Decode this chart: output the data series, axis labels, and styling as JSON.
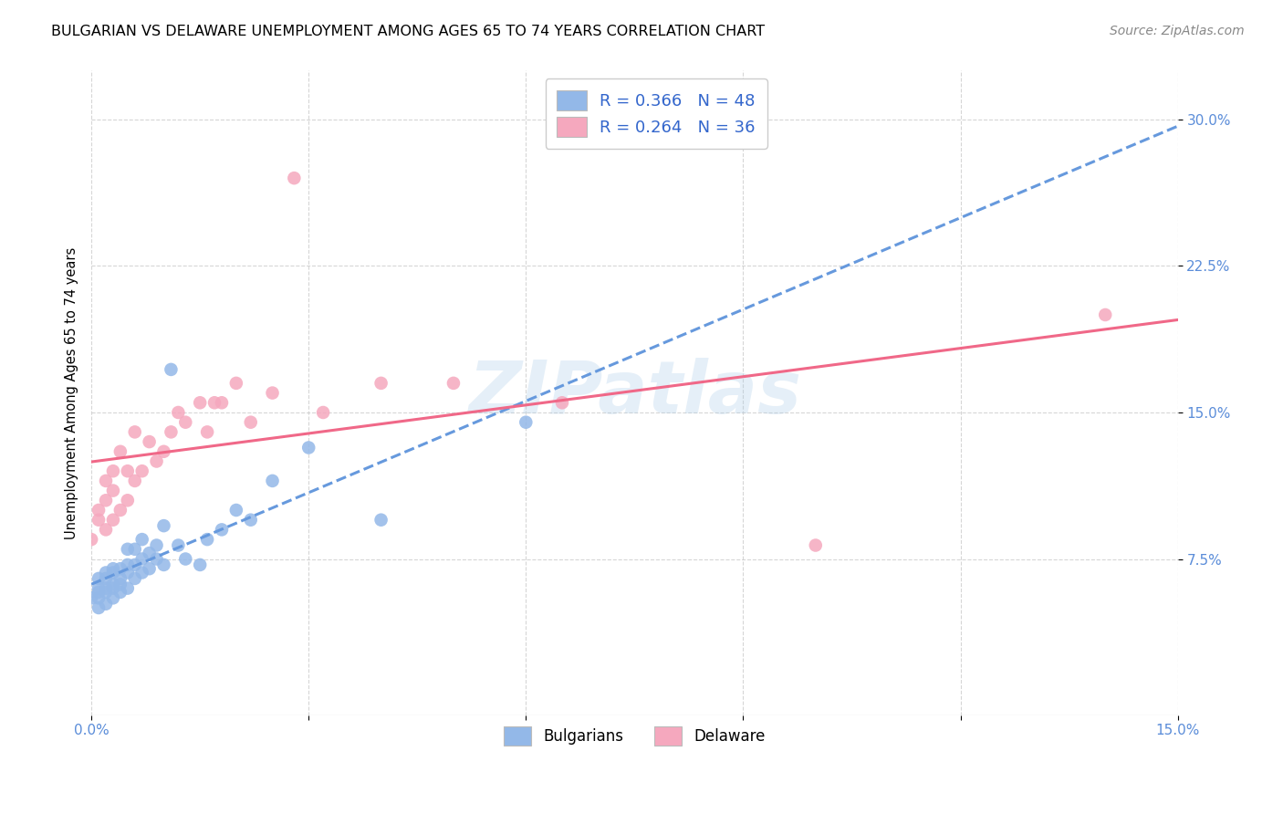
{
  "title": "BULGARIAN VS DELAWARE UNEMPLOYMENT AMONG AGES 65 TO 74 YEARS CORRELATION CHART",
  "source": "Source: ZipAtlas.com",
  "ylabel": "Unemployment Among Ages 65 to 74 years",
  "xlim": [
    0.0,
    0.15
  ],
  "ylim": [
    -0.005,
    0.325
  ],
  "xtick_positions": [
    0.0,
    0.03,
    0.06,
    0.09,
    0.12,
    0.15
  ],
  "xticklabels": [
    "0.0%",
    "",
    "",
    "",
    "",
    "15.0%"
  ],
  "ytick_positions": [
    0.075,
    0.15,
    0.225,
    0.3
  ],
  "ytick_labels": [
    "7.5%",
    "15.0%",
    "22.5%",
    "30.0%"
  ],
  "watermark": "ZIPatlas",
  "legend_label1": "Bulgarians",
  "legend_label2": "Delaware",
  "scatter_color1": "#93b8e8",
  "scatter_color2": "#f5a8be",
  "line_color1": "#6699dd",
  "line_color2": "#f06888",
  "background_color": "#ffffff",
  "grid_color": "#cccccc",
  "bulgarians_x": [
    0.0,
    0.001,
    0.001,
    0.001,
    0.001,
    0.001,
    0.002,
    0.002,
    0.002,
    0.002,
    0.002,
    0.003,
    0.003,
    0.003,
    0.003,
    0.003,
    0.004,
    0.004,
    0.004,
    0.004,
    0.005,
    0.005,
    0.005,
    0.005,
    0.006,
    0.006,
    0.006,
    0.007,
    0.007,
    0.007,
    0.008,
    0.008,
    0.009,
    0.009,
    0.01,
    0.01,
    0.011,
    0.012,
    0.013,
    0.015,
    0.016,
    0.018,
    0.02,
    0.022,
    0.025,
    0.03,
    0.04,
    0.06
  ],
  "bulgarians_y": [
    0.055,
    0.05,
    0.055,
    0.06,
    0.065,
    0.058,
    0.052,
    0.06,
    0.065,
    0.068,
    0.058,
    0.055,
    0.062,
    0.068,
    0.07,
    0.06,
    0.058,
    0.065,
    0.07,
    0.062,
    0.06,
    0.068,
    0.072,
    0.08,
    0.065,
    0.072,
    0.08,
    0.068,
    0.075,
    0.085,
    0.07,
    0.078,
    0.075,
    0.082,
    0.072,
    0.092,
    0.172,
    0.082,
    0.075,
    0.072,
    0.085,
    0.09,
    0.1,
    0.095,
    0.115,
    0.132,
    0.095,
    0.145
  ],
  "delaware_x": [
    0.0,
    0.001,
    0.001,
    0.002,
    0.002,
    0.002,
    0.003,
    0.003,
    0.003,
    0.004,
    0.004,
    0.005,
    0.005,
    0.006,
    0.006,
    0.007,
    0.008,
    0.009,
    0.01,
    0.011,
    0.012,
    0.013,
    0.015,
    0.016,
    0.017,
    0.018,
    0.02,
    0.022,
    0.025,
    0.028,
    0.032,
    0.04,
    0.05,
    0.065,
    0.1,
    0.14
  ],
  "delaware_y": [
    0.085,
    0.095,
    0.1,
    0.09,
    0.105,
    0.115,
    0.095,
    0.11,
    0.12,
    0.1,
    0.13,
    0.105,
    0.12,
    0.115,
    0.14,
    0.12,
    0.135,
    0.125,
    0.13,
    0.14,
    0.15,
    0.145,
    0.155,
    0.14,
    0.155,
    0.155,
    0.165,
    0.145,
    0.16,
    0.27,
    0.15,
    0.165,
    0.165,
    0.155,
    0.082,
    0.2
  ],
  "title_fontsize": 11.5,
  "axis_label_fontsize": 10.5,
  "tick_fontsize": 11,
  "source_fontsize": 10,
  "legend_fontsize": 13
}
